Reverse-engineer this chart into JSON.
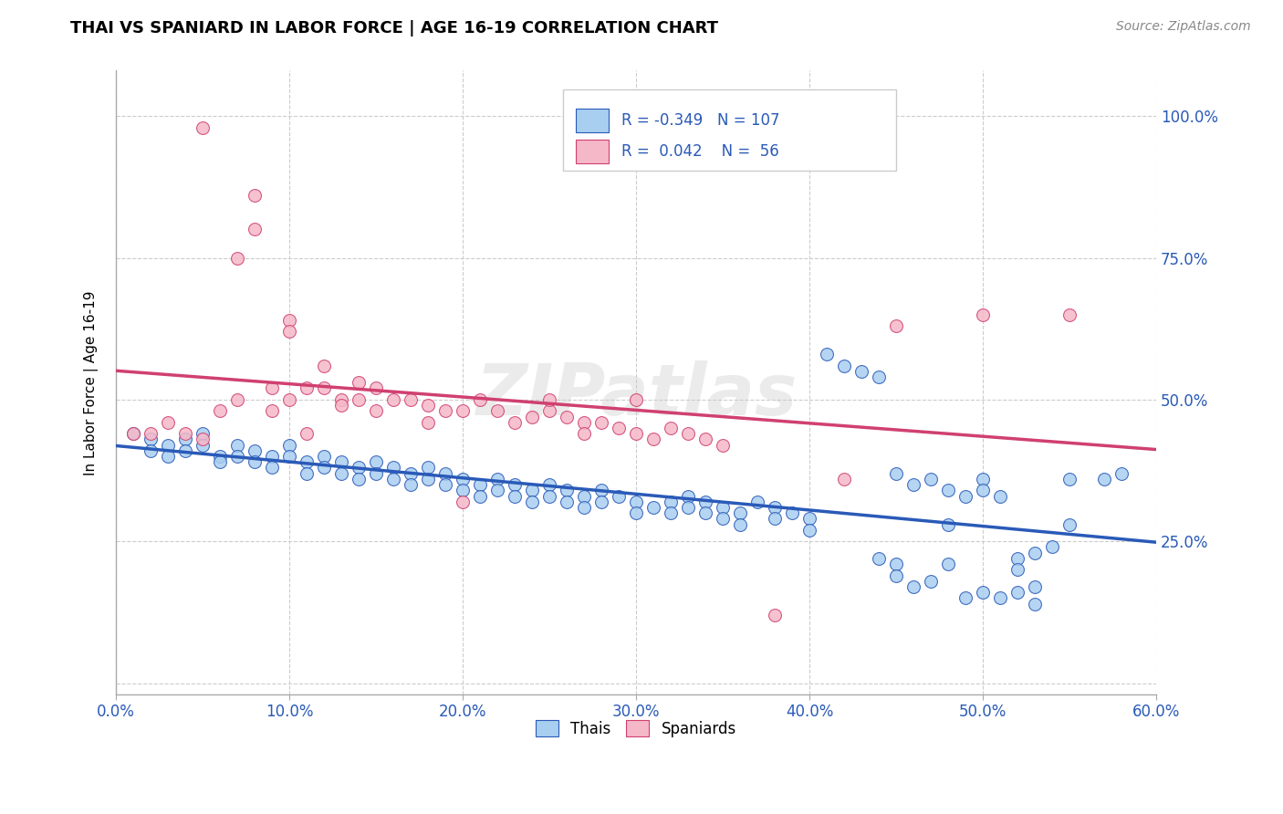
{
  "title": "THAI VS SPANIARD IN LABOR FORCE | AGE 16-19 CORRELATION CHART",
  "source": "Source: ZipAtlas.com",
  "ylabel": "In Labor Force | Age 16-19",
  "yticks": [
    0.0,
    0.25,
    0.5,
    0.75,
    1.0
  ],
  "ytick_labels": [
    "",
    "25.0%",
    "50.0%",
    "75.0%",
    "100.0%"
  ],
  "xlim": [
    0.0,
    0.6
  ],
  "ylim": [
    -0.02,
    1.08
  ],
  "legend_r_blue": "-0.349",
  "legend_n_blue": "107",
  "legend_r_pink": "0.042",
  "legend_n_pink": "56",
  "watermark": "ZIPatlas",
  "blue_color": "#a8cef0",
  "pink_color": "#f5b8c8",
  "trendline_blue": "#2a5ab8",
  "trendline_pink": "#d04070",
  "blue_dots": [
    [
      0.01,
      0.44
    ],
    [
      0.02,
      0.43
    ],
    [
      0.02,
      0.41
    ],
    [
      0.03,
      0.42
    ],
    [
      0.03,
      0.4
    ],
    [
      0.04,
      0.43
    ],
    [
      0.04,
      0.41
    ],
    [
      0.05,
      0.44
    ],
    [
      0.05,
      0.42
    ],
    [
      0.06,
      0.4
    ],
    [
      0.06,
      0.39
    ],
    [
      0.07,
      0.42
    ],
    [
      0.07,
      0.4
    ],
    [
      0.08,
      0.41
    ],
    [
      0.08,
      0.39
    ],
    [
      0.09,
      0.4
    ],
    [
      0.09,
      0.38
    ],
    [
      0.1,
      0.42
    ],
    [
      0.1,
      0.4
    ],
    [
      0.11,
      0.39
    ],
    [
      0.11,
      0.37
    ],
    [
      0.12,
      0.4
    ],
    [
      0.12,
      0.38
    ],
    [
      0.13,
      0.39
    ],
    [
      0.13,
      0.37
    ],
    [
      0.14,
      0.38
    ],
    [
      0.14,
      0.36
    ],
    [
      0.15,
      0.39
    ],
    [
      0.15,
      0.37
    ],
    [
      0.16,
      0.38
    ],
    [
      0.16,
      0.36
    ],
    [
      0.17,
      0.37
    ],
    [
      0.17,
      0.35
    ],
    [
      0.18,
      0.38
    ],
    [
      0.18,
      0.36
    ],
    [
      0.19,
      0.37
    ],
    [
      0.19,
      0.35
    ],
    [
      0.2,
      0.36
    ],
    [
      0.2,
      0.34
    ],
    [
      0.21,
      0.35
    ],
    [
      0.21,
      0.33
    ],
    [
      0.22,
      0.36
    ],
    [
      0.22,
      0.34
    ],
    [
      0.23,
      0.35
    ],
    [
      0.23,
      0.33
    ],
    [
      0.24,
      0.34
    ],
    [
      0.24,
      0.32
    ],
    [
      0.25,
      0.35
    ],
    [
      0.25,
      0.33
    ],
    [
      0.26,
      0.34
    ],
    [
      0.26,
      0.32
    ],
    [
      0.27,
      0.33
    ],
    [
      0.27,
      0.31
    ],
    [
      0.28,
      0.34
    ],
    [
      0.28,
      0.32
    ],
    [
      0.29,
      0.33
    ],
    [
      0.3,
      0.32
    ],
    [
      0.3,
      0.3
    ],
    [
      0.31,
      0.31
    ],
    [
      0.32,
      0.32
    ],
    [
      0.32,
      0.3
    ],
    [
      0.33,
      0.33
    ],
    [
      0.33,
      0.31
    ],
    [
      0.34,
      0.32
    ],
    [
      0.34,
      0.3
    ],
    [
      0.35,
      0.31
    ],
    [
      0.35,
      0.29
    ],
    [
      0.36,
      0.3
    ],
    [
      0.36,
      0.28
    ],
    [
      0.37,
      0.32
    ],
    [
      0.38,
      0.31
    ],
    [
      0.38,
      0.29
    ],
    [
      0.39,
      0.3
    ],
    [
      0.4,
      0.29
    ],
    [
      0.4,
      0.27
    ],
    [
      0.41,
      0.58
    ],
    [
      0.42,
      0.56
    ],
    [
      0.43,
      0.55
    ],
    [
      0.44,
      0.54
    ],
    [
      0.44,
      0.22
    ],
    [
      0.45,
      0.37
    ],
    [
      0.45,
      0.21
    ],
    [
      0.46,
      0.35
    ],
    [
      0.47,
      0.36
    ],
    [
      0.47,
      0.18
    ],
    [
      0.48,
      0.34
    ],
    [
      0.48,
      0.28
    ],
    [
      0.49,
      0.33
    ],
    [
      0.5,
      0.36
    ],
    [
      0.5,
      0.34
    ],
    [
      0.5,
      0.16
    ],
    [
      0.51,
      0.33
    ],
    [
      0.51,
      0.15
    ],
    [
      0.52,
      0.22
    ],
    [
      0.52,
      0.2
    ],
    [
      0.53,
      0.14
    ],
    [
      0.53,
      0.23
    ],
    [
      0.54,
      0.24
    ],
    [
      0.55,
      0.36
    ],
    [
      0.55,
      0.28
    ],
    [
      0.57,
      0.36
    ],
    [
      0.58,
      0.37
    ],
    [
      0.45,
      0.19
    ],
    [
      0.46,
      0.17
    ],
    [
      0.48,
      0.21
    ],
    [
      0.49,
      0.15
    ],
    [
      0.52,
      0.16
    ],
    [
      0.53,
      0.17
    ]
  ],
  "pink_dots": [
    [
      0.01,
      0.44
    ],
    [
      0.02,
      0.44
    ],
    [
      0.03,
      0.46
    ],
    [
      0.04,
      0.44
    ],
    [
      0.05,
      0.43
    ],
    [
      0.05,
      0.98
    ],
    [
      0.06,
      0.48
    ],
    [
      0.07,
      0.5
    ],
    [
      0.07,
      0.75
    ],
    [
      0.08,
      0.8
    ],
    [
      0.08,
      0.86
    ],
    [
      0.09,
      0.48
    ],
    [
      0.09,
      0.52
    ],
    [
      0.1,
      0.5
    ],
    [
      0.1,
      0.64
    ],
    [
      0.1,
      0.62
    ],
    [
      0.11,
      0.44
    ],
    [
      0.11,
      0.52
    ],
    [
      0.12,
      0.56
    ],
    [
      0.12,
      0.52
    ],
    [
      0.13,
      0.5
    ],
    [
      0.13,
      0.49
    ],
    [
      0.14,
      0.53
    ],
    [
      0.14,
      0.5
    ],
    [
      0.15,
      0.48
    ],
    [
      0.15,
      0.52
    ],
    [
      0.16,
      0.5
    ],
    [
      0.17,
      0.5
    ],
    [
      0.18,
      0.49
    ],
    [
      0.18,
      0.46
    ],
    [
      0.19,
      0.48
    ],
    [
      0.2,
      0.48
    ],
    [
      0.2,
      0.32
    ],
    [
      0.21,
      0.5
    ],
    [
      0.22,
      0.48
    ],
    [
      0.23,
      0.46
    ],
    [
      0.24,
      0.47
    ],
    [
      0.25,
      0.48
    ],
    [
      0.25,
      0.5
    ],
    [
      0.26,
      0.47
    ],
    [
      0.27,
      0.46
    ],
    [
      0.27,
      0.44
    ],
    [
      0.28,
      0.46
    ],
    [
      0.29,
      0.45
    ],
    [
      0.3,
      0.5
    ],
    [
      0.3,
      0.44
    ],
    [
      0.31,
      0.43
    ],
    [
      0.32,
      0.45
    ],
    [
      0.33,
      0.44
    ],
    [
      0.34,
      0.43
    ],
    [
      0.35,
      0.42
    ],
    [
      0.38,
      0.12
    ],
    [
      0.45,
      0.63
    ],
    [
      0.5,
      0.65
    ],
    [
      0.55,
      0.65
    ],
    [
      0.42,
      0.36
    ]
  ]
}
